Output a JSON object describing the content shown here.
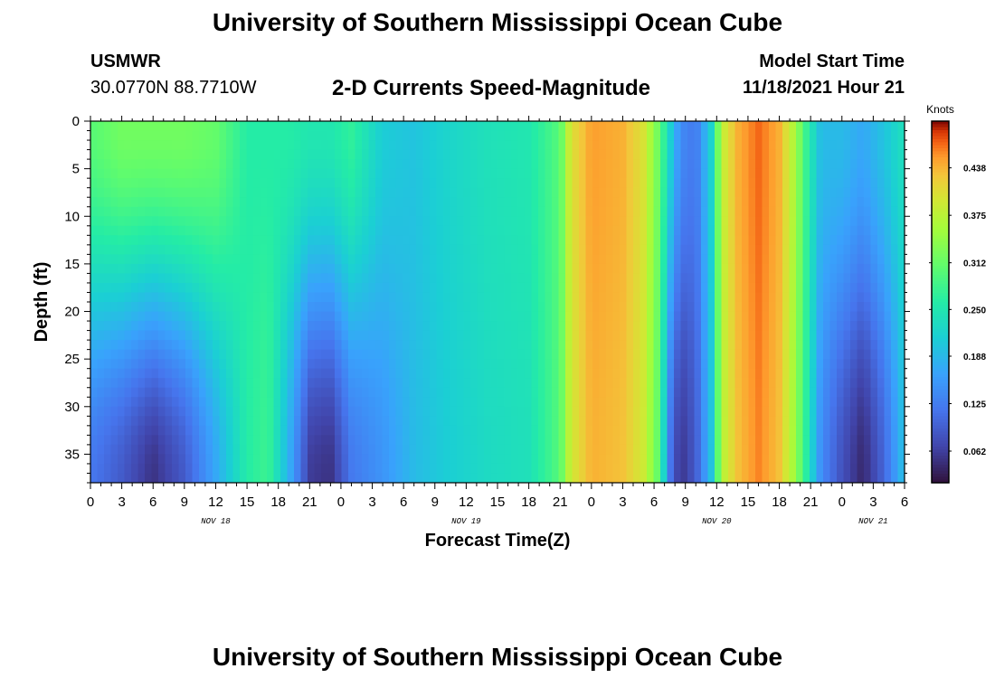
{
  "header": {
    "title": "University of Southern Mississippi Ocean Cube",
    "station": "USMWR",
    "coords": "30.0770N  88.7710W",
    "subtitle": "2-D Currents Speed-Magnitude",
    "model_label": "Model Start Time",
    "model_time": "11/18/2021 Hour 21"
  },
  "footer": {
    "title": "University of Southern Mississippi Ocean Cube"
  },
  "chart_data": {
    "type": "heatmap",
    "title": "2-D Currents Speed-Magnitude",
    "xlabel": "Forecast Time(Z)",
    "ylabel": "Depth (ft)",
    "xlim": [
      0,
      78
    ],
    "ylim": [
      0,
      38
    ],
    "x_ticks": [
      {
        "v": 0,
        "label": "0"
      },
      {
        "v": 3,
        "label": "3"
      },
      {
        "v": 6,
        "label": "6"
      },
      {
        "v": 9,
        "label": "9"
      },
      {
        "v": 12,
        "label": "12"
      },
      {
        "v": 15,
        "label": "15"
      },
      {
        "v": 18,
        "label": "18"
      },
      {
        "v": 21,
        "label": "21"
      },
      {
        "v": 24,
        "label": "0"
      },
      {
        "v": 27,
        "label": "3"
      },
      {
        "v": 30,
        "label": "6"
      },
      {
        "v": 33,
        "label": "9"
      },
      {
        "v": 36,
        "label": "12"
      },
      {
        "v": 39,
        "label": "15"
      },
      {
        "v": 42,
        "label": "18"
      },
      {
        "v": 45,
        "label": "21"
      },
      {
        "v": 48,
        "label": "0"
      },
      {
        "v": 51,
        "label": "3"
      },
      {
        "v": 54,
        "label": "6"
      },
      {
        "v": 57,
        "label": "9"
      },
      {
        "v": 60,
        "label": "12"
      },
      {
        "v": 63,
        "label": "15"
      },
      {
        "v": 66,
        "label": "18"
      },
      {
        "v": 69,
        "label": "21"
      },
      {
        "v": 72,
        "label": "0"
      },
      {
        "v": 75,
        "label": "3"
      },
      {
        "v": 78,
        "label": "6"
      }
    ],
    "day_labels": [
      {
        "v": 12,
        "label": "NOV 18"
      },
      {
        "v": 36,
        "label": "NOV 19"
      },
      {
        "v": 60,
        "label": "NOV 20"
      },
      {
        "v": 75,
        "label": "NOV 21"
      }
    ],
    "y_ticks": [
      0,
      5,
      10,
      15,
      20,
      25,
      30,
      35
    ],
    "colorbar": {
      "title": "Knots",
      "min": 0.02,
      "max": 0.5,
      "ticks": [
        "0.062",
        "0.125",
        "0.188",
        "0.250",
        "0.312",
        "0.375",
        "0.438"
      ]
    },
    "columns": [
      {
        "x": 0,
        "top": 0.3,
        "bottom": 0.12
      },
      {
        "x": 3,
        "top": 0.32,
        "bottom": 0.09
      },
      {
        "x": 6,
        "top": 0.32,
        "bottom": 0.05
      },
      {
        "x": 9,
        "top": 0.32,
        "bottom": 0.09
      },
      {
        "x": 12,
        "top": 0.31,
        "bottom": 0.17
      },
      {
        "x": 15,
        "top": 0.26,
        "bottom": 0.26
      },
      {
        "x": 17,
        "top": 0.26,
        "bottom": 0.28
      },
      {
        "x": 19,
        "top": 0.26,
        "bottom": 0.18
      },
      {
        "x": 21,
        "top": 0.25,
        "bottom": 0.06
      },
      {
        "x": 23,
        "top": 0.25,
        "bottom": 0.05
      },
      {
        "x": 25,
        "top": 0.27,
        "bottom": 0.12
      },
      {
        "x": 28,
        "top": 0.21,
        "bottom": 0.15
      },
      {
        "x": 31,
        "top": 0.2,
        "bottom": 0.19
      },
      {
        "x": 34,
        "top": 0.22,
        "bottom": 0.21
      },
      {
        "x": 38,
        "top": 0.24,
        "bottom": 0.23
      },
      {
        "x": 42,
        "top": 0.25,
        "bottom": 0.24
      },
      {
        "x": 45,
        "top": 0.3,
        "bottom": 0.3
      },
      {
        "x": 46,
        "top": 0.4,
        "bottom": 0.39
      },
      {
        "x": 48,
        "top": 0.45,
        "bottom": 0.44
      },
      {
        "x": 51,
        "top": 0.44,
        "bottom": 0.43
      },
      {
        "x": 53,
        "top": 0.4,
        "bottom": 0.39
      },
      {
        "x": 54.5,
        "top": 0.31,
        "bottom": 0.3
      },
      {
        "x": 55.5,
        "top": 0.22,
        "bottom": 0.12
      },
      {
        "x": 56.5,
        "top": 0.14,
        "bottom": 0.05
      },
      {
        "x": 58,
        "top": 0.12,
        "bottom": 0.09
      },
      {
        "x": 59.5,
        "top": 0.22,
        "bottom": 0.2
      },
      {
        "x": 60.5,
        "top": 0.38,
        "bottom": 0.37
      },
      {
        "x": 62,
        "top": 0.44,
        "bottom": 0.43
      },
      {
        "x": 64,
        "top": 0.47,
        "bottom": 0.46
      },
      {
        "x": 66,
        "top": 0.44,
        "bottom": 0.43
      },
      {
        "x": 67.5,
        "top": 0.36,
        "bottom": 0.35
      },
      {
        "x": 68.5,
        "top": 0.28,
        "bottom": 0.27
      },
      {
        "x": 70,
        "top": 0.19,
        "bottom": 0.14
      },
      {
        "x": 72,
        "top": 0.19,
        "bottom": 0.08
      },
      {
        "x": 74,
        "top": 0.17,
        "bottom": 0.04
      },
      {
        "x": 76,
        "top": 0.2,
        "bottom": 0.1
      },
      {
        "x": 78,
        "top": 0.24,
        "bottom": 0.2
      }
    ]
  }
}
